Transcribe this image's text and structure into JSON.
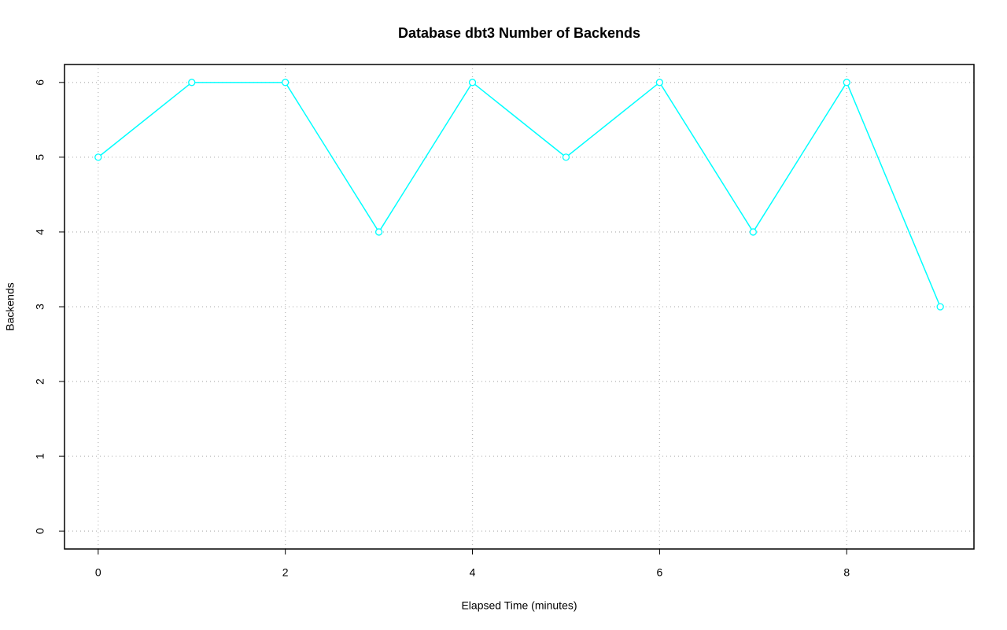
{
  "chart_data": {
    "type": "line",
    "title": "Database dbt3 Number of Backends",
    "x_label": "Elapsed Time (minutes)",
    "y_label": "Backends",
    "x": [
      0,
      1,
      2,
      3,
      4,
      5,
      6,
      7,
      8,
      9
    ],
    "series": [
      {
        "name": "Backends",
        "color": "#00ffff",
        "values": [
          5,
          6,
          6,
          4,
          6,
          5,
          6,
          4,
          6,
          3
        ]
      }
    ],
    "xlim": [
      -0.36,
      9.36
    ],
    "ylim": [
      -0.24,
      6.24
    ],
    "xticks": [
      0,
      2,
      4,
      6,
      8
    ],
    "yticks": [
      0,
      1,
      2,
      3,
      4,
      5,
      6
    ],
    "grid": true
  }
}
